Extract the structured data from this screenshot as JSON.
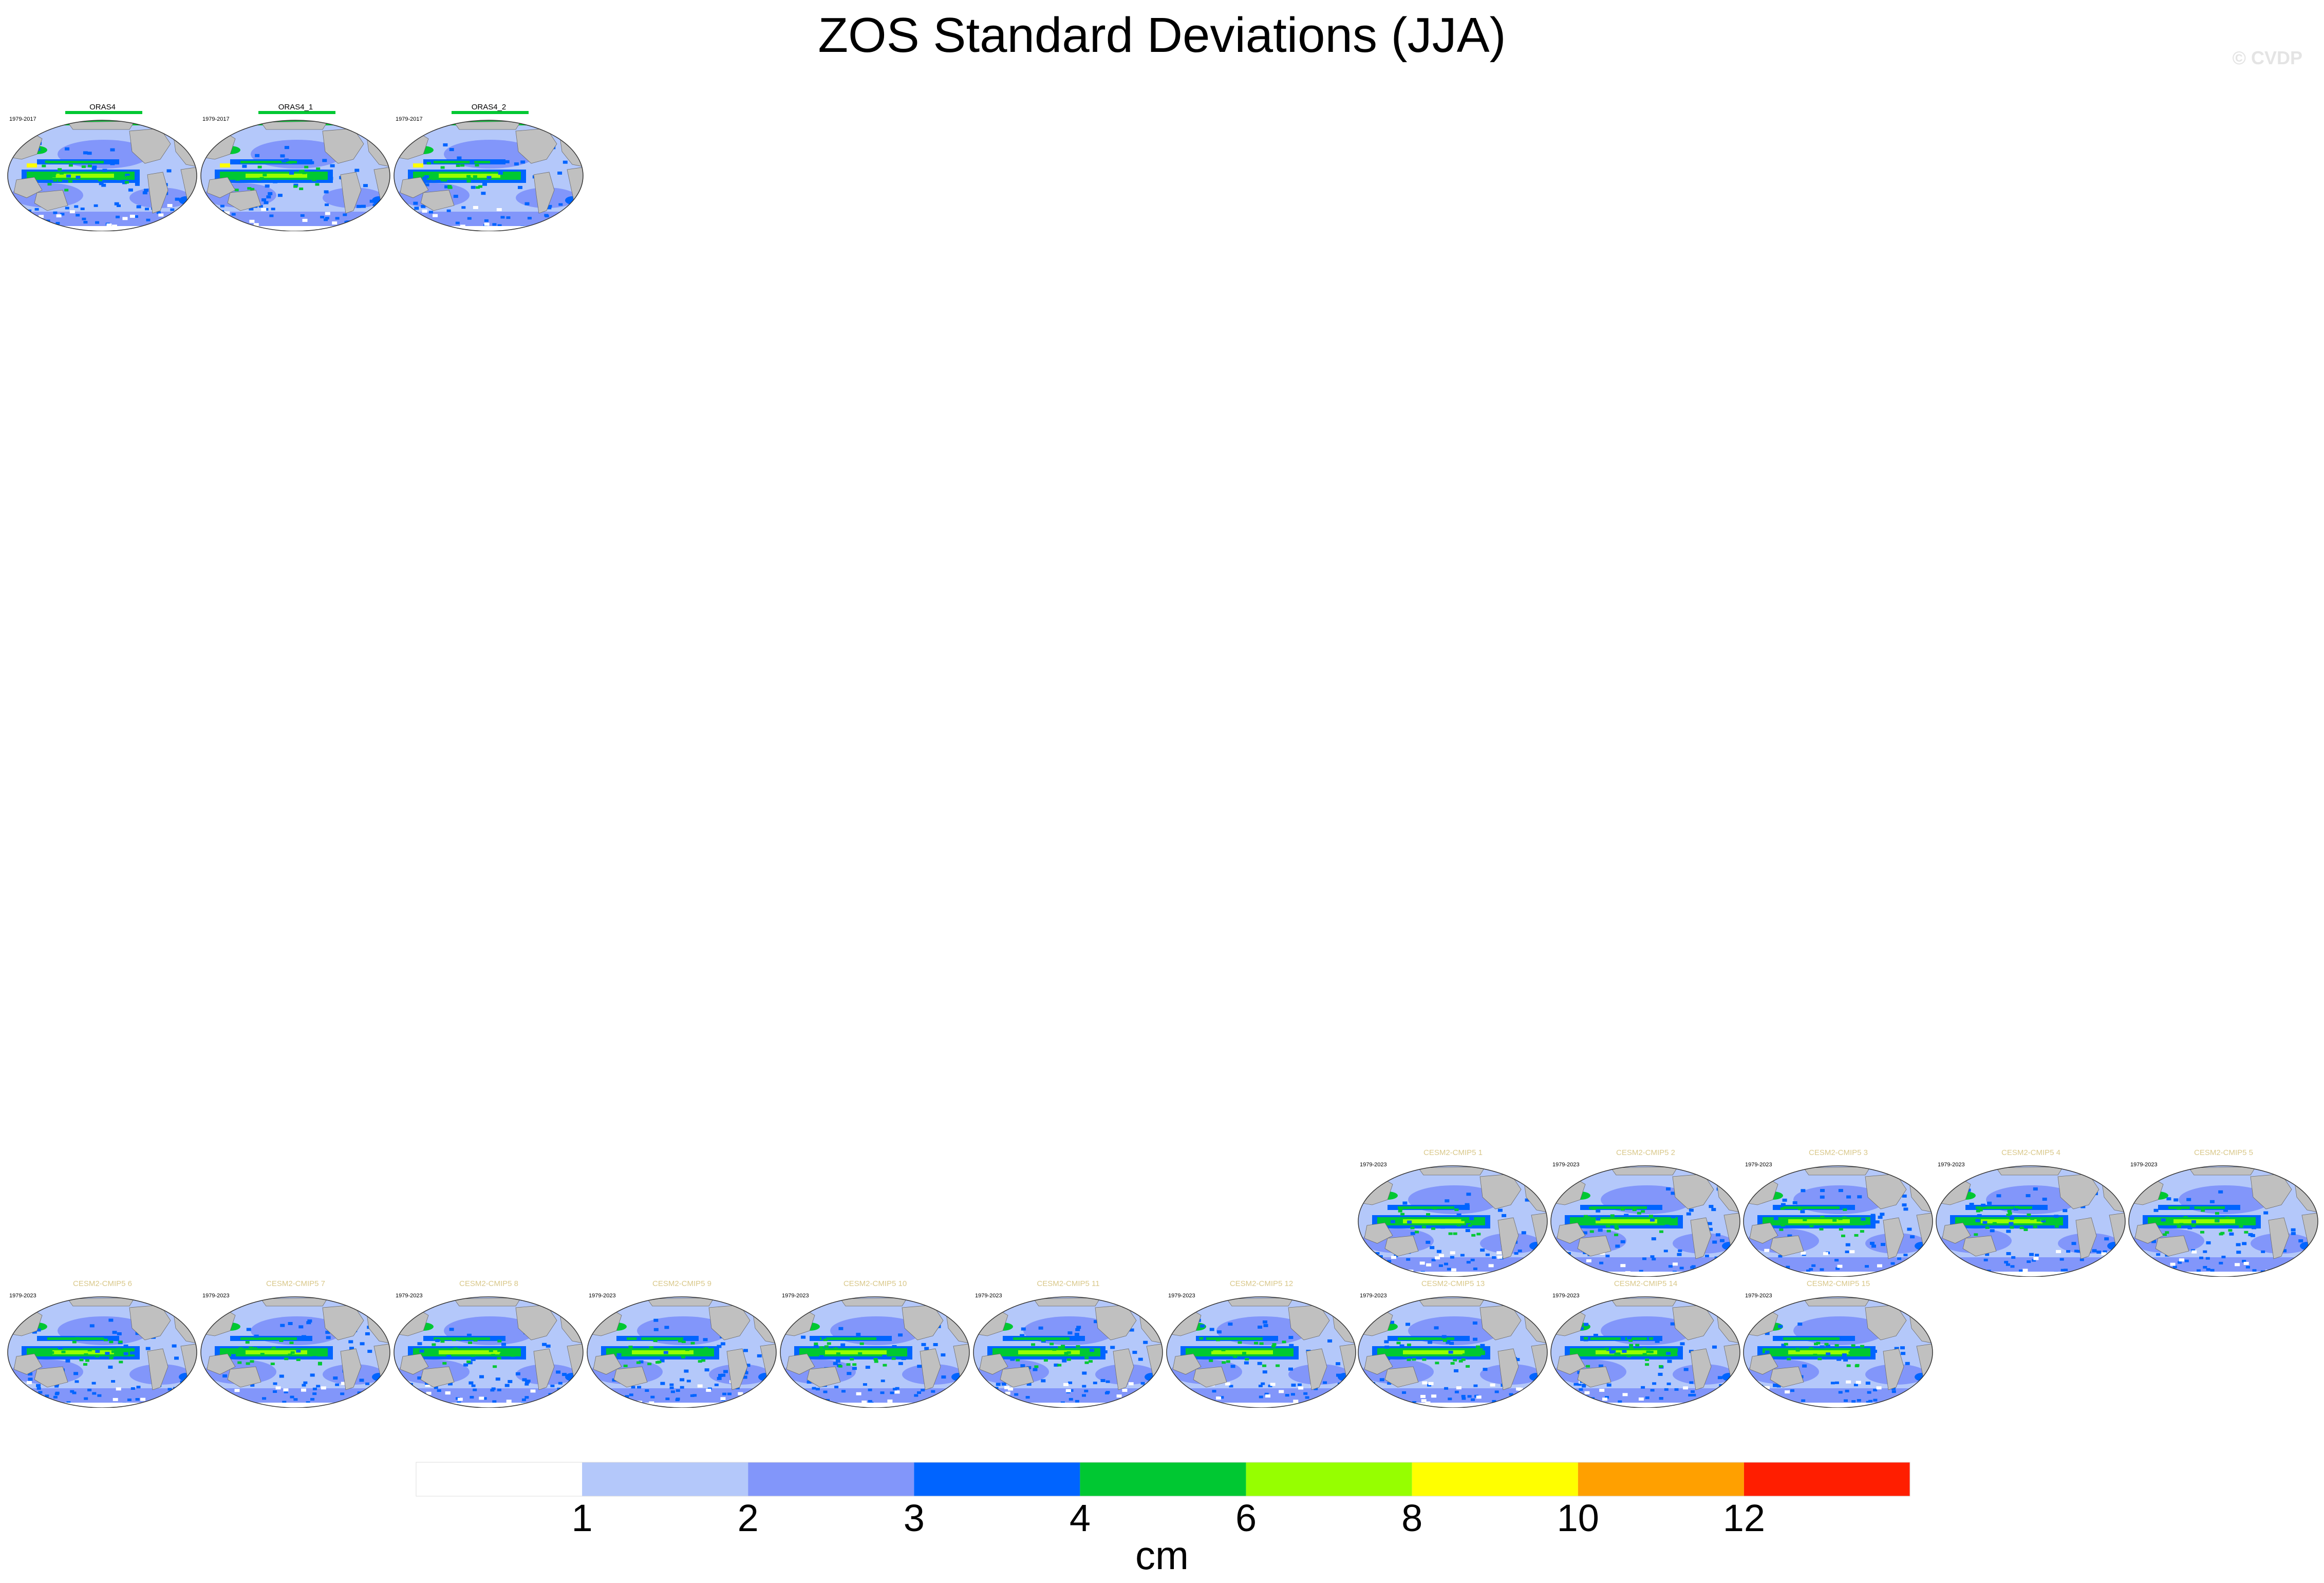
{
  "figure": {
    "title": "ZOS Standard Deviations (JJA)",
    "credit": "© CVDP"
  },
  "chart_data": {
    "type": "map-panels",
    "variable": "ZOS",
    "statistic": "standard deviation",
    "season": "JJA",
    "units": "cm",
    "colorbar": {
      "boundaries": [
        1,
        2,
        3,
        4,
        6,
        8,
        10,
        12
      ],
      "tick_labels": [
        "1",
        "2",
        "3",
        "4",
        "6",
        "8",
        "10",
        "12"
      ],
      "colors": [
        "#ffffff",
        "#b4c8fa",
        "#8296fa",
        "#0064ff",
        "#00c832",
        "#96ff00",
        "#ffff00",
        "#ffa000",
        "#ff1e00"
      ],
      "label": "cm"
    },
    "land_color": "#c0c0c0",
    "reference_panels": [
      {
        "title": "ORAS4",
        "years": "1979-2017",
        "title_color": "#000000"
      },
      {
        "title": "ORAS4_1",
        "years": "1979-2017",
        "title_color": "#000000"
      },
      {
        "title": "ORAS4_2",
        "years": "1979-2017",
        "title_color": "#000000"
      }
    ],
    "model_panels": [
      {
        "title": "CESM2-CMIP5 1",
        "years": "1979-2023",
        "title_color": "#d9c88a"
      },
      {
        "title": "CESM2-CMIP5 2",
        "years": "1979-2023",
        "title_color": "#d9c88a"
      },
      {
        "title": "CESM2-CMIP5 3",
        "years": "1979-2023",
        "title_color": "#d9c88a"
      },
      {
        "title": "CESM2-CMIP5 4",
        "years": "1979-2023",
        "title_color": "#d9c88a"
      },
      {
        "title": "CESM2-CMIP5 5",
        "years": "1979-2023",
        "title_color": "#d9c88a"
      },
      {
        "title": "CESM2-CMIP5 6",
        "years": "1979-2023",
        "title_color": "#d9c88a"
      },
      {
        "title": "CESM2-CMIP5 7",
        "years": "1979-2023",
        "title_color": "#d9c88a"
      },
      {
        "title": "CESM2-CMIP5 8",
        "years": "1979-2023",
        "title_color": "#d9c88a"
      },
      {
        "title": "CESM2-CMIP5 9",
        "years": "1979-2023",
        "title_color": "#d9c88a"
      },
      {
        "title": "CESM2-CMIP5 10",
        "years": "1979-2023",
        "title_color": "#d9c88a"
      },
      {
        "title": "CESM2-CMIP5 11",
        "years": "1979-2023",
        "title_color": "#d9c88a"
      },
      {
        "title": "CESM2-CMIP5 12",
        "years": "1979-2023",
        "title_color": "#d9c88a"
      },
      {
        "title": "CESM2-CMIP5 13",
        "years": "1979-2023",
        "title_color": "#d9c88a"
      },
      {
        "title": "CESM2-CMIP5 14",
        "years": "1979-2023",
        "title_color": "#d9c88a"
      },
      {
        "title": "CESM2-CMIP5 15",
        "years": "1979-2023",
        "title_color": "#d9c88a"
      }
    ]
  }
}
